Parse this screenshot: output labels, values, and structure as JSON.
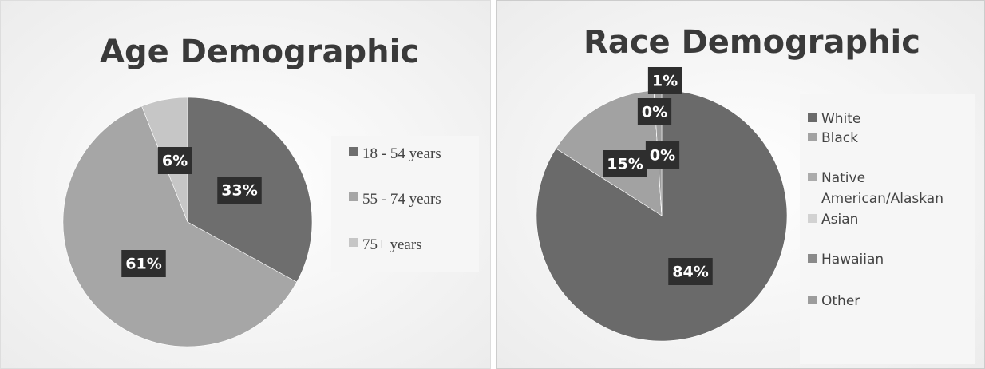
{
  "chart_data": [
    {
      "type": "pie",
      "title": "Age Demographic",
      "categories": [
        "18 - 54 years",
        "55 - 74 years",
        "75+ years"
      ],
      "values": [
        33,
        61,
        6
      ],
      "value_labels": [
        "33%",
        "61%",
        "6%"
      ],
      "colors": [
        "#6e6e6e",
        "#a6a6a6",
        "#c6c6c6"
      ],
      "legend": "right"
    },
    {
      "type": "pie",
      "title": "Race Demographic",
      "categories": [
        "White",
        "Black",
        "Native American/Alaskan",
        "Asian",
        "Hawaiian",
        "Other"
      ],
      "values": [
        84,
        15,
        0,
        0,
        0,
        1
      ],
      "value_labels": [
        "84%",
        "15%",
        "0%",
        "0%",
        null,
        "1%"
      ],
      "colors": [
        "#6a6a6a",
        "#a2a2a2",
        "#ababab",
        "#d2d2d2",
        "#8a8a8a",
        "#9c9c9c"
      ],
      "legend": "right"
    }
  ]
}
